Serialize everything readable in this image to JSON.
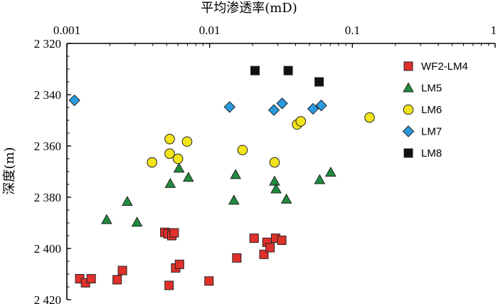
{
  "chart_data": {
    "type": "scatter",
    "title": "",
    "xlabel": "平均渗透率(mD)",
    "ylabel": "深度(m)",
    "x_scale": "log",
    "xlim": [
      0.001,
      1
    ],
    "x_axis_position": "top",
    "ylim": [
      2320,
      2420
    ],
    "y_inverted": true,
    "x_ticks": [
      0.001,
      0.01,
      0.1,
      1
    ],
    "x_tick_labels": [
      "0.001",
      "0.01",
      "0.1",
      "1"
    ],
    "y_ticks": [
      2320,
      2340,
      2360,
      2380,
      2400,
      2420
    ],
    "y_tick_labels": [
      "2 320",
      "2 340",
      "2 360",
      "2 380",
      "2 400",
      "2 420"
    ],
    "grid": false,
    "legend_position": "top-right",
    "series": [
      {
        "name": "WF2-LM4",
        "marker": "square",
        "color": "#e0302a",
        "points": [
          {
            "x": 0.00123,
            "y": 2411.8
          },
          {
            "x": 0.00135,
            "y": 2413.4
          },
          {
            "x": 0.00148,
            "y": 2411.8
          },
          {
            "x": 0.00225,
            "y": 2412.2
          },
          {
            "x": 0.00245,
            "y": 2408.6
          },
          {
            "x": 0.00485,
            "y": 2393.7
          },
          {
            "x": 0.0051,
            "y": 2394.3
          },
          {
            "x": 0.00543,
            "y": 2395.0
          },
          {
            "x": 0.00565,
            "y": 2393.9
          },
          {
            "x": 0.0052,
            "y": 2414.4
          },
          {
            "x": 0.00578,
            "y": 2407.6
          },
          {
            "x": 0.00615,
            "y": 2406.2
          },
          {
            "x": 0.0099,
            "y": 2412.7
          },
          {
            "x": 0.0155,
            "y": 2403.7
          },
          {
            "x": 0.0205,
            "y": 2396.0
          },
          {
            "x": 0.024,
            "y": 2402.3
          },
          {
            "x": 0.0252,
            "y": 2397.6
          },
          {
            "x": 0.0265,
            "y": 2399.7
          },
          {
            "x": 0.029,
            "y": 2396.0
          },
          {
            "x": 0.032,
            "y": 2396.8
          }
        ]
      },
      {
        "name": "LM5",
        "marker": "triangle",
        "color": "#1e8c3c",
        "points": [
          {
            "x": 0.0019,
            "y": 2388.8
          },
          {
            "x": 0.00265,
            "y": 2381.7
          },
          {
            "x": 0.0031,
            "y": 2389.8
          },
          {
            "x": 0.0053,
            "y": 2374.7
          },
          {
            "x": 0.0061,
            "y": 2368.7
          },
          {
            "x": 0.0071,
            "y": 2372.3
          },
          {
            "x": 0.0148,
            "y": 2381.2
          },
          {
            "x": 0.0152,
            "y": 2371.2
          },
          {
            "x": 0.0285,
            "y": 2373.8
          },
          {
            "x": 0.0292,
            "y": 2376.8
          },
          {
            "x": 0.0345,
            "y": 2380.8
          },
          {
            "x": 0.059,
            "y": 2373.2
          },
          {
            "x": 0.0705,
            "y": 2370.3
          }
        ]
      },
      {
        "name": "LM6",
        "marker": "circle",
        "color": "#f2e41a",
        "points": [
          {
            "x": 0.00395,
            "y": 2366.4
          },
          {
            "x": 0.00525,
            "y": 2357.3
          },
          {
            "x": 0.00525,
            "y": 2363.0
          },
          {
            "x": 0.006,
            "y": 2365.0
          },
          {
            "x": 0.00695,
            "y": 2358.3
          },
          {
            "x": 0.017,
            "y": 2361.6
          },
          {
            "x": 0.0285,
            "y": 2366.4
          },
          {
            "x": 0.041,
            "y": 2351.6
          },
          {
            "x": 0.0435,
            "y": 2350.4
          },
          {
            "x": 0.132,
            "y": 2348.9
          }
        ]
      },
      {
        "name": "LM7",
        "marker": "diamond",
        "color": "#2a9ae0",
        "points": [
          {
            "x": 0.00113,
            "y": 2342.2
          },
          {
            "x": 0.0138,
            "y": 2344.8
          },
          {
            "x": 0.0282,
            "y": 2346.0
          },
          {
            "x": 0.0322,
            "y": 2343.4
          },
          {
            "x": 0.053,
            "y": 2345.5
          },
          {
            "x": 0.0605,
            "y": 2344.2
          }
        ]
      },
      {
        "name": "LM8",
        "marker": "square",
        "color": "#111111",
        "points": [
          {
            "x": 0.0208,
            "y": 2330.6
          },
          {
            "x": 0.0355,
            "y": 2330.6
          },
          {
            "x": 0.0585,
            "y": 2335.0
          }
        ]
      }
    ]
  }
}
